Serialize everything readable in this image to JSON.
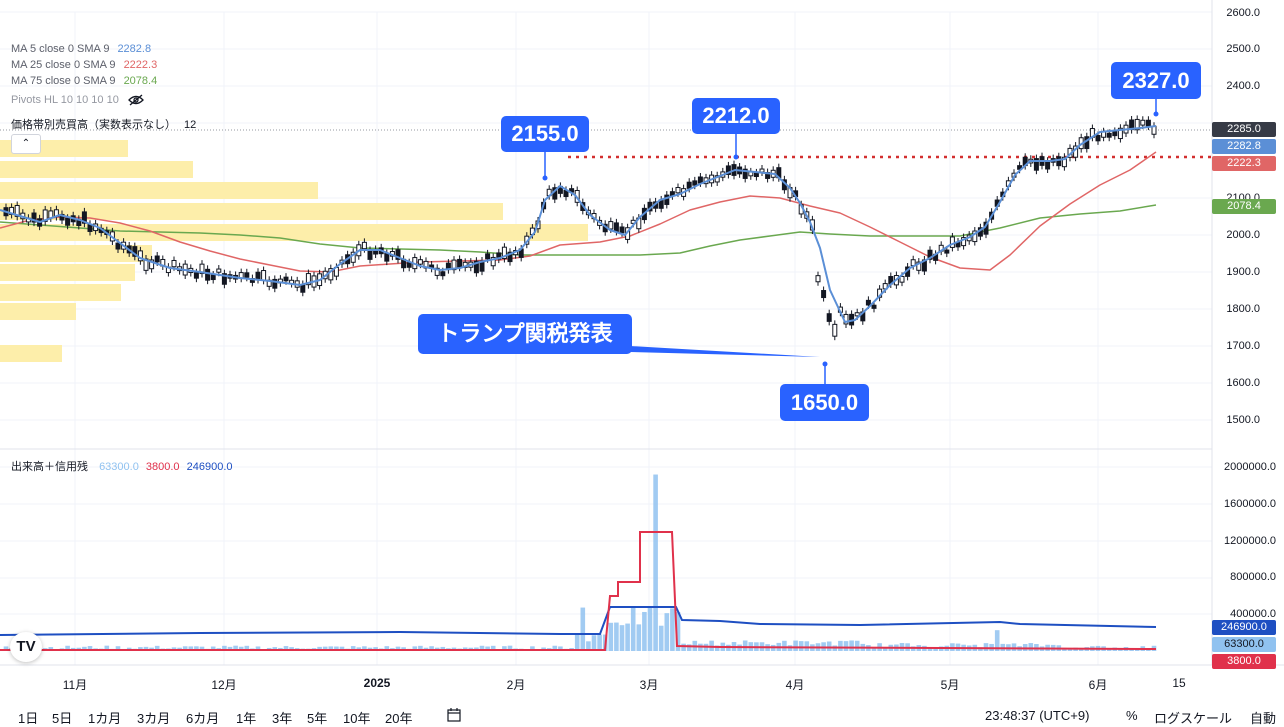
{
  "indicators": [
    {
      "name": "MA 5 close 0 SMA 9",
      "value": "2282.8",
      "color": "#5b8fd6"
    },
    {
      "name": "MA 25 close 0 SMA 9",
      "value": "2222.3",
      "color": "#e06666"
    },
    {
      "name": "MA 75 close 0 SMA 9",
      "value": "2078.4",
      "color": "#6aa84f"
    }
  ],
  "pivots_label": "Pivots HL 10 10 10 10",
  "volume_profile_label": "価格帯別売買高（実数表示なし）",
  "volume_profile_value": "12",
  "collapse_symbol": "⌃",
  "volume_panel": {
    "name": "出来高＋信用残",
    "values": [
      {
        "text": "63300.0",
        "color": "#90c2f0"
      },
      {
        "text": "3800.0",
        "color": "#e0314b"
      },
      {
        "text": "246900.0",
        "color": "#1e4fc2"
      }
    ]
  },
  "annotations": {
    "a2155": "2155.0",
    "a2212": "2212.0",
    "a2327": "2327.0",
    "a1650": "1650.0",
    "trump": "トランプ関税発表"
  },
  "price_axis": [
    "2600.0",
    "2500.0",
    "2400.0",
    "2100.0",
    "2000.0",
    "1900.0",
    "1800.0",
    "1700.0",
    "1600.0",
    "1500.0"
  ],
  "price_tags": [
    {
      "text": "2285.0",
      "bg": "#363a45",
      "fg": "#ffffff"
    },
    {
      "text": "2282.8",
      "bg": "#5b8fd6",
      "fg": "#ffffff"
    },
    {
      "text": "2222.3",
      "bg": "#e06666",
      "fg": "#ffffff"
    },
    {
      "text": "2078.4",
      "bg": "#6aa84f",
      "fg": "#ffffff"
    }
  ],
  "volume_axis": [
    "2000000.0",
    "1600000.0",
    "1200000.0",
    "800000.0",
    "400000.0"
  ],
  "volume_tags": [
    {
      "text": "246900.0",
      "bg": "#1e4fc2",
      "fg": "#ffffff"
    },
    {
      "text": "63300.0",
      "bg": "#90c2f0",
      "fg": "#131722"
    },
    {
      "text": "3800.0",
      "bg": "#e0314b",
      "fg": "#ffffff"
    }
  ],
  "time_axis": [
    "11月",
    "12月",
    "2025",
    "2月",
    "3月",
    "4月",
    "5月",
    "6月",
    "15"
  ],
  "range_buttons": [
    "1日",
    "5日",
    "1カ月",
    "3カ月",
    "6カ月",
    "1年",
    "3年",
    "5年",
    "10年",
    "20年"
  ],
  "clock": "23:48:37 (UTC+9)",
  "percent_label": "%",
  "log_scale_label": "ログスケール",
  "auto_label": "自動",
  "logo_text": "TV",
  "colors": {
    "accent": "#2962ff",
    "ma5": "#5b8fd6",
    "ma25": "#e06666",
    "ma75": "#6aa84f",
    "profile": "#fdeeaa",
    "resistance": "#d32f2f"
  }
}
